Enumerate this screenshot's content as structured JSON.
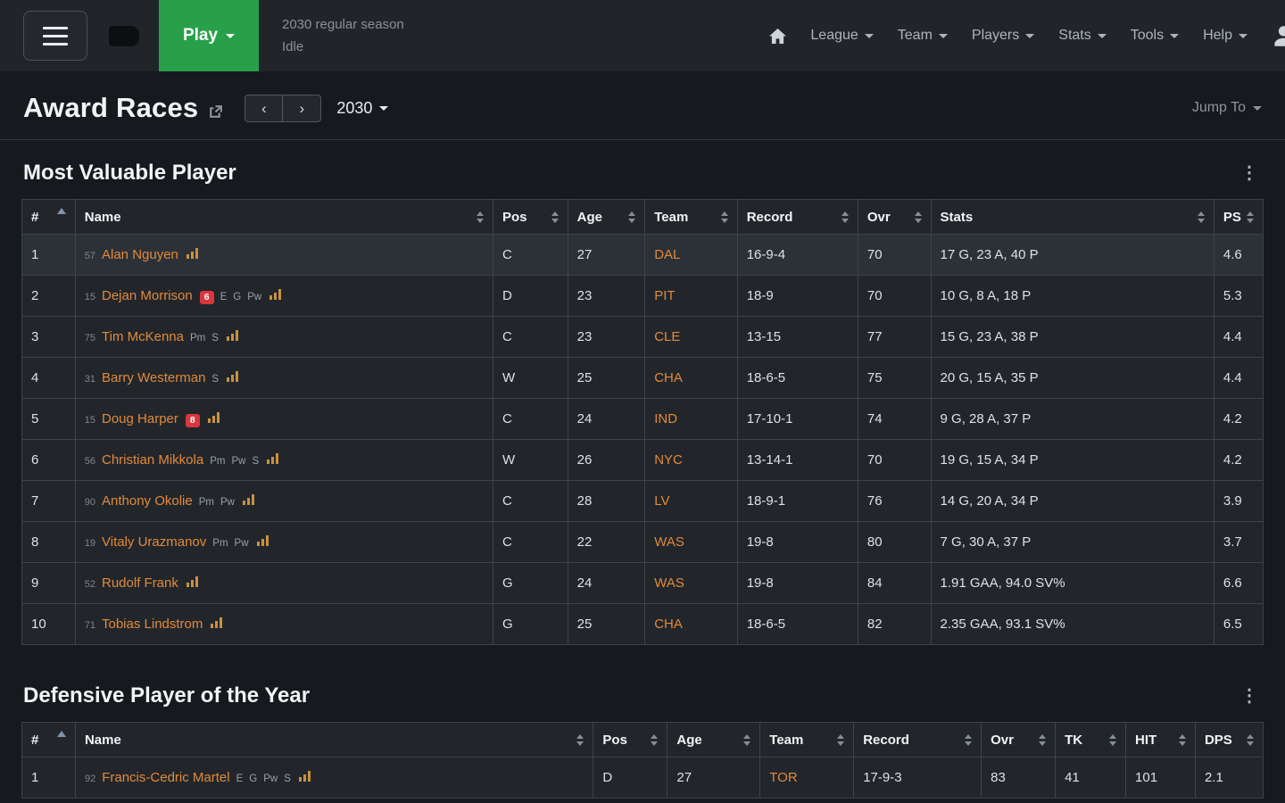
{
  "topbar": {
    "play_label": "Play",
    "status_line1": "2030 regular season",
    "status_line2": "Idle",
    "nav_items": [
      "League",
      "Team",
      "Players",
      "Stats",
      "Tools",
      "Help"
    ]
  },
  "page": {
    "title": "Award Races",
    "season": "2030",
    "jump_to_label": "Jump To",
    "prev_label": "‹",
    "next_label": "›"
  },
  "colors": {
    "accent_orange": "#e08a3c",
    "play_green": "#28a049",
    "injury_red": "#d9363e"
  },
  "sections": [
    {
      "title": "Most Valuable Player",
      "columns": [
        "#",
        "Name",
        "Pos",
        "Age",
        "Team",
        "Record",
        "Ovr",
        "Stats",
        "PS"
      ],
      "sorted_column": 0,
      "rows": [
        {
          "rank": "1",
          "jersey": "57",
          "name": "Alan Nguyen",
          "traits": [],
          "injury": null,
          "pos": "C",
          "age": "27",
          "team": "DAL",
          "record": "16-9-4",
          "ovr": "70",
          "tail": [
            "17 G, 23 A, 40 P",
            "4.6"
          ],
          "highlight": true
        },
        {
          "rank": "2",
          "jersey": "15",
          "name": "Dejan Morrison",
          "traits": [
            "E",
            "G",
            "Pw"
          ],
          "injury": "6",
          "pos": "D",
          "age": "23",
          "team": "PIT",
          "record": "18-9",
          "ovr": "70",
          "tail": [
            "10 G, 8 A, 18 P",
            "5.3"
          ]
        },
        {
          "rank": "3",
          "jersey": "75",
          "name": "Tim McKenna",
          "traits": [
            "Pm",
            "S"
          ],
          "injury": null,
          "pos": "C",
          "age": "23",
          "team": "CLE",
          "record": "13-15",
          "ovr": "77",
          "tail": [
            "15 G, 23 A, 38 P",
            "4.4"
          ]
        },
        {
          "rank": "4",
          "jersey": "31",
          "name": "Barry Westerman",
          "traits": [
            "S"
          ],
          "injury": null,
          "pos": "W",
          "age": "25",
          "team": "CHA",
          "record": "18-6-5",
          "ovr": "75",
          "tail": [
            "20 G, 15 A, 35 P",
            "4.4"
          ]
        },
        {
          "rank": "5",
          "jersey": "15",
          "name": "Doug Harper",
          "traits": [],
          "injury": "8",
          "pos": "C",
          "age": "24",
          "team": "IND",
          "record": "17-10-1",
          "ovr": "74",
          "tail": [
            "9 G, 28 A, 37 P",
            "4.2"
          ]
        },
        {
          "rank": "6",
          "jersey": "56",
          "name": "Christian Mikkola",
          "traits": [
            "Pm",
            "Pw",
            "S"
          ],
          "injury": null,
          "pos": "W",
          "age": "26",
          "team": "NYC",
          "record": "13-14-1",
          "ovr": "70",
          "tail": [
            "19 G, 15 A, 34 P",
            "4.2"
          ]
        },
        {
          "rank": "7",
          "jersey": "90",
          "name": "Anthony Okolie",
          "traits": [
            "Pm",
            "Pw"
          ],
          "injury": null,
          "pos": "C",
          "age": "28",
          "team": "LV",
          "record": "18-9-1",
          "ovr": "76",
          "tail": [
            "14 G, 20 A, 34 P",
            "3.9"
          ]
        },
        {
          "rank": "8",
          "jersey": "19",
          "name": "Vitaly Urazmanov",
          "traits": [
            "Pm",
            "Pw"
          ],
          "injury": null,
          "pos": "C",
          "age": "22",
          "team": "WAS",
          "record": "19-8",
          "ovr": "80",
          "tail": [
            "7 G, 30 A, 37 P",
            "3.7"
          ]
        },
        {
          "rank": "9",
          "jersey": "52",
          "name": "Rudolf Frank",
          "traits": [],
          "injury": null,
          "pos": "G",
          "age": "24",
          "team": "WAS",
          "record": "19-8",
          "ovr": "84",
          "tail": [
            "1.91 GAA, 94.0 SV%",
            "6.6"
          ]
        },
        {
          "rank": "10",
          "jersey": "71",
          "name": "Tobias Lindstrom",
          "traits": [],
          "injury": null,
          "pos": "G",
          "age": "25",
          "team": "CHA",
          "record": "18-6-5",
          "ovr": "82",
          "tail": [
            "2.35 GAA, 93.1 SV%",
            "6.5"
          ]
        }
      ]
    },
    {
      "title": "Defensive Player of the Year",
      "columns": [
        "#",
        "Name",
        "Pos",
        "Age",
        "Team",
        "Record",
        "Ovr",
        "TK",
        "HIT",
        "DPS"
      ],
      "sorted_column": 0,
      "rows": [
        {
          "rank": "1",
          "jersey": "92",
          "name": "Francis-Cedric Martel",
          "traits": [
            "E",
            "G",
            "Pw",
            "S"
          ],
          "injury": null,
          "pos": "D",
          "age": "27",
          "team": "TOR",
          "record": "17-9-3",
          "ovr": "83",
          "tail": [
            "41",
            "101",
            "2.1"
          ]
        }
      ]
    }
  ]
}
